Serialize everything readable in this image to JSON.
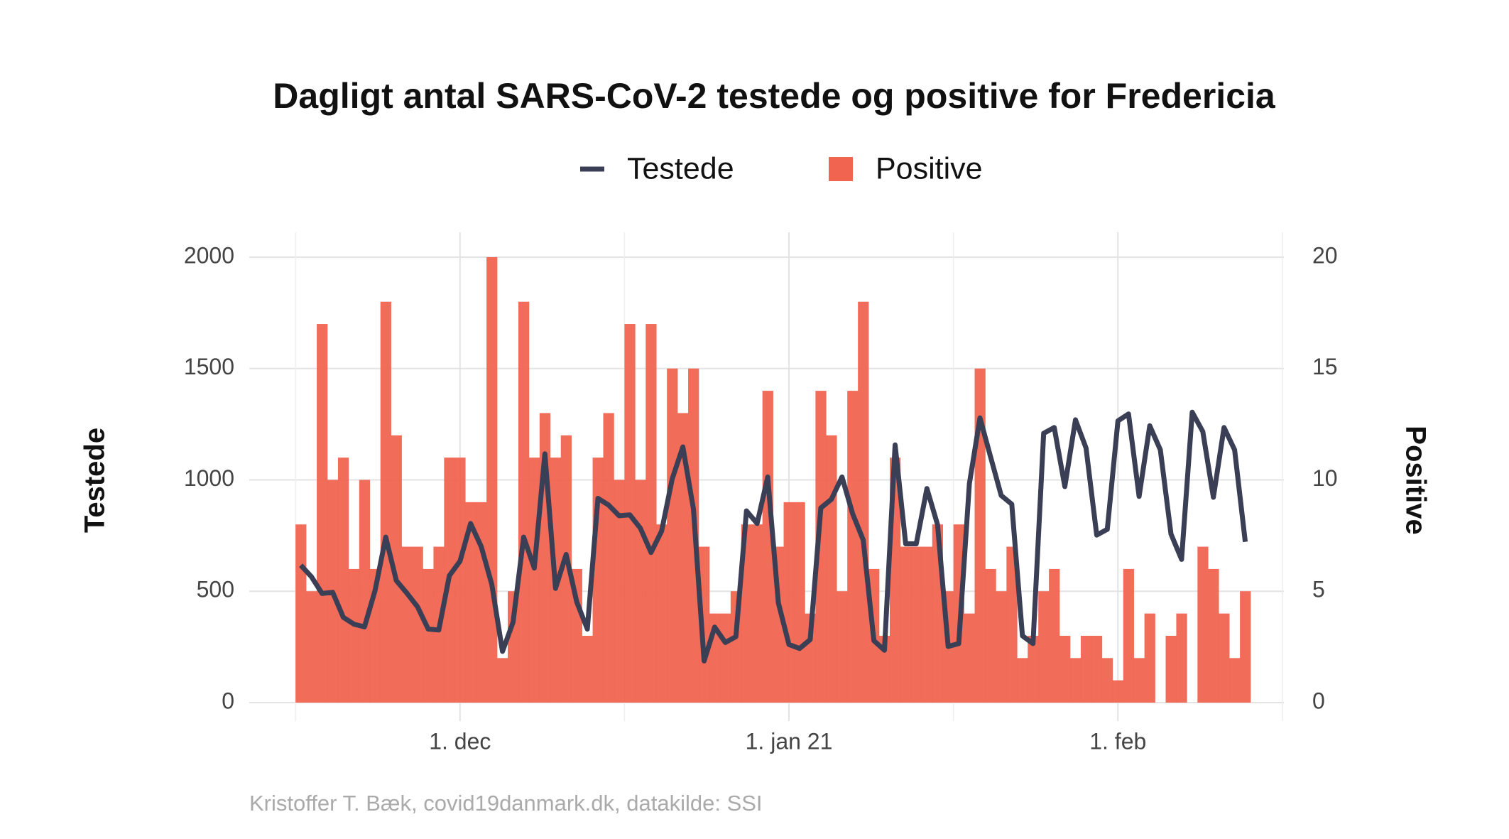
{
  "chart_data": {
    "type": "combo",
    "title": "Dagligt antal SARS-CoV-2 testede og positive for Fredericia",
    "caption": "Kristoffer T. Bæk, covid19danmark.dk, datakilde: SSI",
    "y_label": "Testede",
    "y2_label": "Positive",
    "categories": [
      null,
      null,
      null,
      null,
      null,
      null,
      null,
      null,
      null,
      null,
      null,
      null,
      null,
      null,
      null,
      "1. dec",
      null,
      null,
      null,
      null,
      null,
      null,
      null,
      null,
      null,
      null,
      null,
      null,
      null,
      null,
      null,
      null,
      null,
      null,
      null,
      null,
      null,
      null,
      null,
      null,
      null,
      null,
      null,
      null,
      null,
      null,
      "1. jan 21",
      null,
      null,
      null,
      null,
      null,
      null,
      null,
      null,
      null,
      null,
      null,
      null,
      null,
      null,
      null,
      null,
      null,
      null,
      null,
      null,
      null,
      null,
      null,
      null,
      null,
      null,
      null,
      null,
      null,
      null,
      "1. feb",
      null,
      null,
      null,
      null,
      null,
      null,
      null,
      null,
      null,
      null,
      null,
      null
    ],
    "series": [
      {
        "name": "Testede",
        "type": "line",
        "color": "#3b3f55",
        "values": [
          617,
          565,
          490,
          495,
          383,
          352,
          340,
          504,
          743,
          548,
          491,
          430,
          330,
          326,
          570,
          635,
          804,
          700,
          530,
          230,
          361,
          743,
          604,
          1117,
          513,
          665,
          452,
          330,
          917,
          887,
          839,
          843,
          783,
          674,
          770,
          1004,
          1148,
          870,
          187,
          339,
          270,
          296,
          861,
          804,
          1013,
          448,
          261,
          243,
          283,
          874,
          913,
          1013,
          848,
          730,
          278,
          235,
          1157,
          713,
          713,
          961,
          800,
          252,
          265,
          983,
          1278,
          1104,
          930,
          891,
          300,
          265,
          1209,
          1235,
          970,
          1270,
          1143,
          752,
          778,
          1265,
          1296,
          926,
          1243,
          1135,
          757,
          643,
          1304,
          1217,
          922,
          1235,
          1135,
          722
        ]
      },
      {
        "name": "Positive",
        "type": "bar",
        "axis": "y2",
        "color": "#f06450",
        "values": [
          8,
          5,
          17,
          10,
          11,
          6,
          10,
          6,
          18,
          12,
          7,
          7,
          6,
          7,
          11,
          11,
          9,
          9,
          20,
          2,
          5,
          18,
          11,
          13,
          11,
          12,
          6,
          3,
          11,
          13,
          10,
          17,
          10,
          17,
          8,
          15,
          13,
          15,
          7,
          4,
          4,
          5,
          8,
          8,
          14,
          7,
          9,
          9,
          4,
          14,
          12,
          5,
          14,
          18,
          6,
          3,
          11,
          7,
          7,
          7,
          8,
          5,
          8,
          4,
          15,
          6,
          5,
          7,
          2,
          3,
          5,
          6,
          3,
          2,
          3,
          3,
          2,
          1,
          6,
          2,
          4,
          0,
          3,
          4,
          0,
          7,
          6,
          4,
          2,
          5
        ]
      }
    ],
    "ylim": [
      0,
      2000
    ],
    "yticks": [
      0,
      500,
      1000,
      1500,
      2000
    ],
    "y2lim": [
      0,
      20
    ],
    "y2ticks": [
      0,
      5,
      10,
      15,
      20
    ],
    "grid": true
  }
}
